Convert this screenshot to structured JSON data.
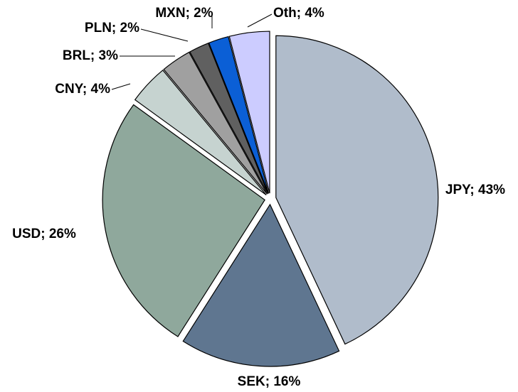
{
  "chart_data": {
    "type": "pie",
    "values": [
      43,
      16,
      26,
      4,
      3,
      2,
      2,
      4
    ],
    "value_labels": [
      "JPY; 43%",
      "SEK; 16%",
      "USD; 26%",
      "CNY; 4%",
      "BRL; 3%",
      "PLN; 2%",
      "MXN; 2%",
      "Oth; 4%"
    ],
    "colors": [
      "#b0bccb",
      "#5f7690",
      "#8fa89c",
      "#c6d3d0",
      "#a0a0a0",
      "#606060",
      "#0b5fd6",
      "#ccccff"
    ]
  }
}
